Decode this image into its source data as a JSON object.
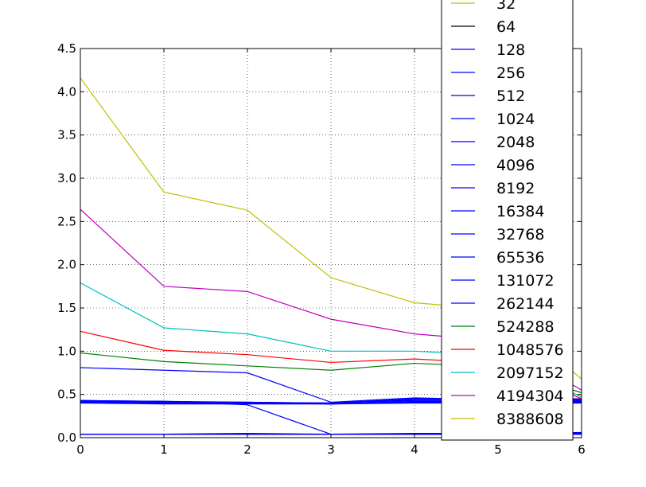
{
  "chart_data": {
    "type": "line",
    "title": "",
    "xlabel": "",
    "ylabel": "",
    "xlim": [
      0,
      6
    ],
    "ylim": [
      0,
      4.5
    ],
    "x_ticks": [
      "0",
      "1",
      "2",
      "3",
      "4",
      "5",
      "6"
    ],
    "y_ticks": [
      "0.0",
      "0.5",
      "1.0",
      "1.5",
      "2.0",
      "2.5",
      "3.0",
      "3.5",
      "4.0",
      "4.5"
    ],
    "grid": true,
    "legend_position": "top-right",
    "x": [
      0,
      1,
      2,
      3,
      4,
      5,
      6
    ],
    "series": [
      {
        "name": "32",
        "color": "#bfbf00",
        "values": [
          0.04,
          0.04,
          0.04,
          0.04,
          0.04,
          0.04,
          0.04
        ]
      },
      {
        "name": "64",
        "color": "#000000",
        "values": [
          0.04,
          0.04,
          0.04,
          0.04,
          0.04,
          0.04,
          0.04
        ]
      },
      {
        "name": "128",
        "color": "#0000ff",
        "values": [
          0.04,
          0.04,
          0.04,
          0.04,
          0.04,
          0.04,
          0.04
        ]
      },
      {
        "name": "256",
        "color": "#0000ff",
        "values": [
          0.04,
          0.04,
          0.04,
          0.04,
          0.04,
          0.04,
          0.05
        ]
      },
      {
        "name": "512",
        "color": "#0000ff",
        "values": [
          0.04,
          0.04,
          0.04,
          0.04,
          0.04,
          0.04,
          0.05
        ]
      },
      {
        "name": "1024",
        "color": "#0000ff",
        "values": [
          0.04,
          0.04,
          0.05,
          0.04,
          0.05,
          0.05,
          0.06
        ]
      },
      {
        "name": "2048",
        "color": "#0000ff",
        "values": [
          0.4,
          0.39,
          0.39,
          0.39,
          0.4,
          0.4,
          0.4
        ]
      },
      {
        "name": "4096",
        "color": "#0000ff",
        "values": [
          0.41,
          0.4,
          0.4,
          0.39,
          0.41,
          0.41,
          0.41
        ]
      },
      {
        "name": "8192",
        "color": "#0000ff",
        "values": [
          0.41,
          0.41,
          0.41,
          0.39,
          0.42,
          0.42,
          0.42
        ]
      },
      {
        "name": "16384",
        "color": "#0000ff",
        "values": [
          0.42,
          0.41,
          0.41,
          0.4,
          0.43,
          0.43,
          0.43
        ]
      },
      {
        "name": "32768",
        "color": "#0000ff",
        "values": [
          0.42,
          0.42,
          0.41,
          0.4,
          0.44,
          0.44,
          0.44
        ]
      },
      {
        "name": "65536",
        "color": "#0000ff",
        "values": [
          0.43,
          0.42,
          0.4,
          0.4,
          0.45,
          0.45,
          0.45
        ]
      },
      {
        "name": "131072",
        "color": "#0000ff",
        "values": [
          0.43,
          0.42,
          0.38,
          0.04,
          0.04,
          0.04,
          0.04
        ]
      },
      {
        "name": "262144",
        "color": "#0000ff",
        "values": [
          0.81,
          0.78,
          0.75,
          0.41,
          0.46,
          0.44,
          0.43
        ]
      },
      {
        "name": "524288",
        "color": "#008000",
        "values": [
          0.98,
          0.88,
          0.83,
          0.78,
          0.86,
          0.82,
          0.52
        ]
      },
      {
        "name": "1048576",
        "color": "#ff0000",
        "values": [
          1.23,
          1.01,
          0.96,
          0.87,
          0.91,
          0.86,
          0.45
        ]
      },
      {
        "name": "2097152",
        "color": "#00bfbf",
        "values": [
          1.79,
          1.27,
          1.2,
          1.0,
          1.0,
          0.95,
          0.47
        ]
      },
      {
        "name": "4194304",
        "color": "#bf00bf",
        "values": [
          2.64,
          1.75,
          1.69,
          1.37,
          1.2,
          1.12,
          0.55
        ]
      },
      {
        "name": "8388608",
        "color": "#bfbf00",
        "values": [
          4.16,
          2.84,
          2.63,
          1.85,
          1.56,
          1.48,
          0.68
        ]
      }
    ]
  }
}
